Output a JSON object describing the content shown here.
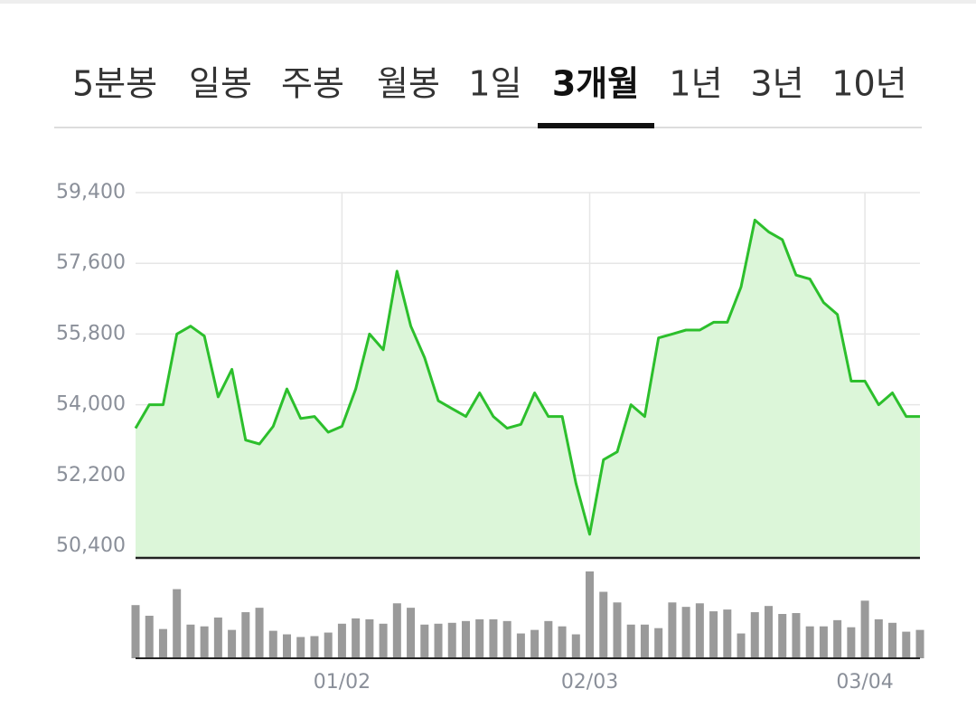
{
  "tabs": {
    "items": [
      "5분봉",
      "일봉",
      "주봉",
      "월봉",
      "1일",
      "3개월",
      "1년",
      "3년",
      "10년"
    ],
    "active": 5
  },
  "chart_data": {
    "type": "line",
    "categories": [
      null,
      null,
      null,
      null,
      null,
      null,
      null,
      null,
      null,
      null,
      null,
      null,
      null,
      null,
      null,
      "01/02",
      null,
      null,
      null,
      null,
      null,
      null,
      null,
      null,
      null,
      null,
      null,
      null,
      null,
      null,
      null,
      null,
      null,
      "02/03",
      null,
      null,
      null,
      null,
      null,
      null,
      null,
      null,
      null,
      null,
      null,
      null,
      null,
      null,
      null,
      null,
      null,
      null,
      null,
      "03/04",
      null,
      null,
      null,
      null
    ],
    "values": [
      53400,
      54000,
      54000,
      55800,
      56000,
      55750,
      54200,
      54900,
      53100,
      53000,
      53450,
      54400,
      53650,
      53700,
      53300,
      53450,
      54400,
      55800,
      55400,
      57400,
      56000,
      55200,
      54100,
      53900,
      53700,
      54300,
      53700,
      53400,
      53500,
      54300,
      53700,
      53700,
      52000,
      50700,
      52600,
      52800,
      54000,
      53700,
      55700,
      55800,
      55900,
      55900,
      56100,
      56100,
      57000,
      58700,
      58400,
      58200,
      57300,
      57200,
      56600,
      56300,
      54600,
      54600,
      54000,
      54300,
      53700,
      53700
    ],
    "volume": [
      60,
      48,
      33,
      78,
      38,
      36,
      46,
      32,
      52,
      57,
      31,
      27,
      24,
      25,
      29,
      39,
      45,
      44,
      39,
      62,
      57,
      38,
      39,
      40,
      42,
      44,
      44,
      42,
      28,
      32,
      42,
      36,
      27,
      98,
      75,
      63,
      38,
      38,
      34,
      63,
      58,
      62,
      53,
      55,
      28,
      52,
      59,
      50,
      51,
      36,
      36,
      43,
      35,
      65,
      44,
      40,
      30,
      32
    ],
    "color": "#2cbf2c",
    "fill_color": "#dcf6d9",
    "volume_color": "#9a9a9a",
    "ylim": [
      50100,
      59400
    ],
    "yticks": [
      {
        "value": 59400,
        "label": "59,400"
      },
      {
        "value": 57600,
        "label": "57,600"
      },
      {
        "value": 55800,
        "label": "55,800"
      },
      {
        "value": 54000,
        "label": "54,000"
      },
      {
        "value": 52200,
        "label": "52,200"
      },
      {
        "value": 50400,
        "label": "50,400"
      }
    ],
    "volume_lim": [
      0,
      100
    ],
    "grid": true
  }
}
